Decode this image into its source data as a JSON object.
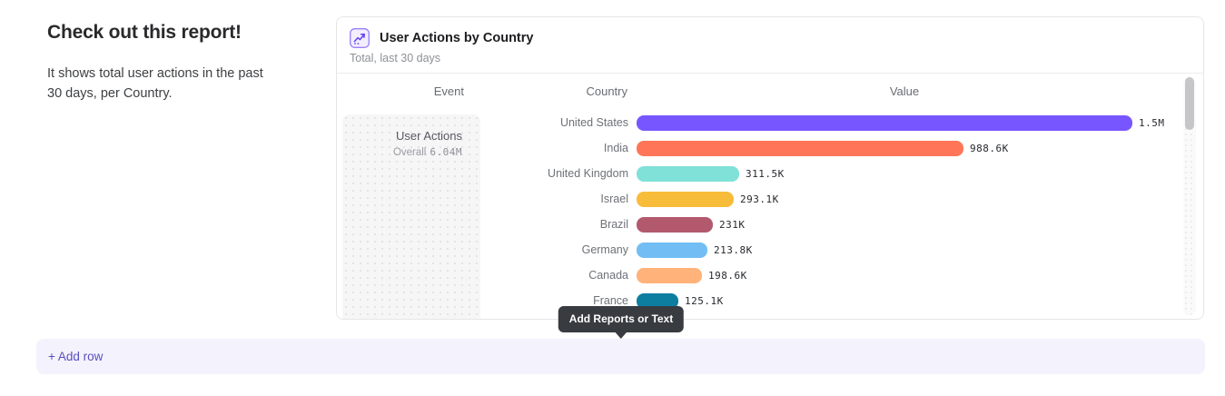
{
  "hero": {
    "title": "Check out this report!",
    "description": "It shows total user actions in the past 30 days, per Country."
  },
  "report_card": {
    "title": "User Actions by Country",
    "subtitle": "Total, last 30 days",
    "icon": "line-chart-icon",
    "columns": [
      "Event",
      "Country",
      "Value"
    ],
    "event": {
      "name": "User Actions",
      "aggregation": "Overall",
      "total": "6.04M"
    }
  },
  "chart_data": {
    "type": "bar",
    "orientation": "horizontal",
    "title": "User Actions by Country",
    "xlabel": "Value",
    "ylabel": "Country",
    "xlim": [
      0,
      1500000
    ],
    "grid": false,
    "categories": [
      "United States",
      "India",
      "United Kingdom",
      "Israel",
      "Brazil",
      "Germany",
      "Canada",
      "France"
    ],
    "values": [
      1500000,
      988600,
      311500,
      293100,
      231000,
      213800,
      198600,
      125100
    ],
    "value_labels": [
      "1.5M",
      "988.6K",
      "311.5K",
      "293.1K",
      "231K",
      "213.8K",
      "198.6K",
      "125.1K"
    ],
    "colors": [
      "#7856FF",
      "#FF7557",
      "#80E1D9",
      "#F8BC3B",
      "#B2596E",
      "#72BEF4",
      "#FFB27A",
      "#0D7EA0"
    ]
  },
  "tooltip": {
    "label": "Add Reports or Text"
  },
  "footer": {
    "add_row_label": "+ Add row",
    "accent_color": "#574FC0"
  }
}
